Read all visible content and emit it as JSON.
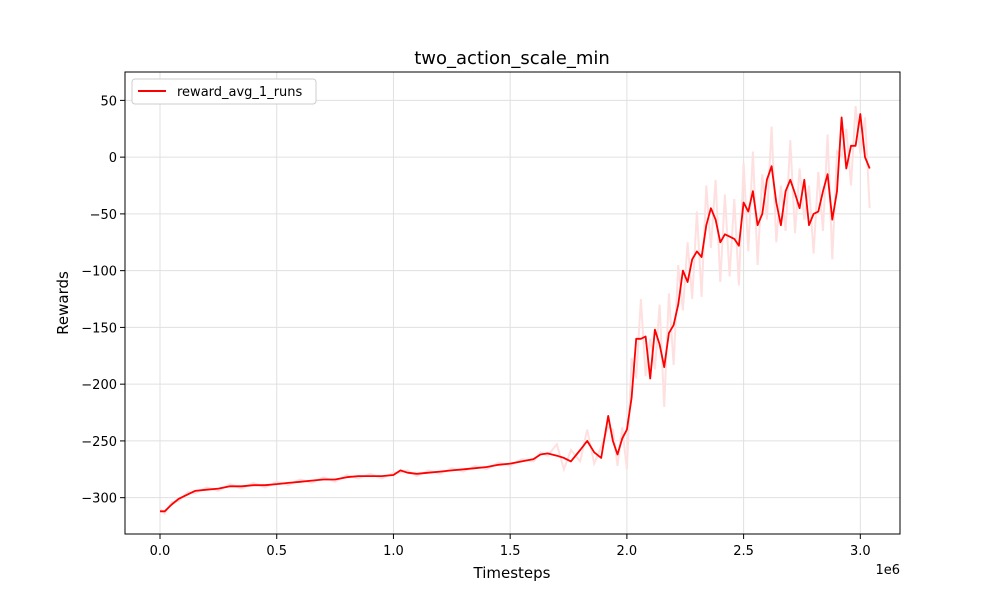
{
  "chart_data": {
    "type": "line",
    "title": "two_action_scale_min",
    "xlabel": "Timesteps",
    "ylabel": "Rewards",
    "x_offset_label": "1e6",
    "xlim": [
      -0.15,
      3.17
    ],
    "ylim": [
      -332,
      75
    ],
    "x_ticks": [
      0.0,
      0.5,
      1.0,
      1.5,
      2.0,
      2.5,
      3.0
    ],
    "x_tick_labels": [
      "0.0",
      "0.5",
      "1.0",
      "1.5",
      "2.0",
      "2.5",
      "3.0"
    ],
    "y_ticks": [
      -300,
      -250,
      -200,
      -150,
      -100,
      -50,
      0,
      50
    ],
    "y_tick_labels": [
      "−300",
      "−250",
      "−200",
      "−150",
      "−100",
      "−50",
      "0",
      "50"
    ],
    "grid": true,
    "legend_position": "top-left",
    "series": [
      {
        "name": "reward_avg_1_runs",
        "color": "#ff0000",
        "raw_color": "#ffe0e0",
        "x": [
          0.0,
          0.02,
          0.05,
          0.08,
          0.12,
          0.15,
          0.2,
          0.25,
          0.3,
          0.35,
          0.4,
          0.45,
          0.5,
          0.55,
          0.6,
          0.65,
          0.7,
          0.75,
          0.8,
          0.85,
          0.9,
          0.95,
          1.0,
          1.03,
          1.06,
          1.1,
          1.15,
          1.2,
          1.25,
          1.3,
          1.35,
          1.4,
          1.45,
          1.5,
          1.55,
          1.6,
          1.63,
          1.66,
          1.7,
          1.73,
          1.76,
          1.8,
          1.83,
          1.86,
          1.89,
          1.92,
          1.94,
          1.96,
          1.98,
          2.0,
          2.02,
          2.04,
          2.06,
          2.08,
          2.1,
          2.12,
          2.14,
          2.16,
          2.18,
          2.2,
          2.22,
          2.24,
          2.26,
          2.28,
          2.3,
          2.32,
          2.34,
          2.36,
          2.38,
          2.4,
          2.42,
          2.44,
          2.46,
          2.48,
          2.5,
          2.52,
          2.54,
          2.56,
          2.58,
          2.6,
          2.62,
          2.64,
          2.66,
          2.68,
          2.7,
          2.72,
          2.74,
          2.76,
          2.78,
          2.8,
          2.82,
          2.84,
          2.86,
          2.88,
          2.9,
          2.92,
          2.94,
          2.96,
          2.98,
          3.0,
          3.02,
          3.04
        ],
        "y": [
          -312,
          -312,
          -306,
          -301,
          -297,
          -294,
          -293,
          -292,
          -290,
          -290,
          -289,
          -289,
          -288,
          -287,
          -286,
          -285,
          -284,
          -284,
          -282,
          -281,
          -281,
          -281,
          -280,
          -276,
          -278,
          -279,
          -278,
          -277,
          -276,
          -275,
          -274,
          -273,
          -271,
          -270,
          -268,
          -266,
          -262,
          -261,
          -263,
          -265,
          -268,
          -258,
          -250,
          -260,
          -265,
          -228,
          -250,
          -262,
          -248,
          -240,
          -212,
          -160,
          -160,
          -158,
          -195,
          -152,
          -165,
          -185,
          -155,
          -148,
          -130,
          -100,
          -110,
          -90,
          -83,
          -88,
          -60,
          -45,
          -55,
          -75,
          -68,
          -70,
          -72,
          -78,
          -40,
          -48,
          -30,
          -60,
          -50,
          -20,
          -8,
          -40,
          -60,
          -30,
          -20,
          -32,
          -45,
          -20,
          -60,
          -50,
          -48,
          -30,
          -15,
          -55,
          -30,
          35,
          -10,
          10,
          10,
          38,
          0,
          -10
        ]
      }
    ]
  }
}
